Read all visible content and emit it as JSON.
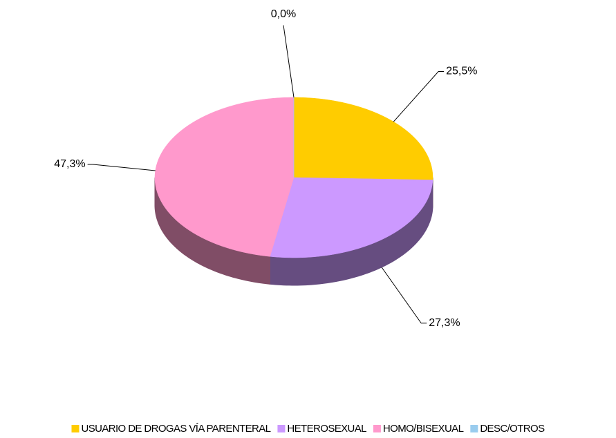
{
  "chart_data": {
    "type": "pie",
    "categories": [
      "USUARIO DE DROGAS VÍA PARENTERAL",
      "HETEROSEXUAL",
      "HOMO/BISEXUAL",
      "DESC/OTROS"
    ],
    "values": [
      25.5,
      27.3,
      47.3,
      0.0
    ],
    "value_labels": [
      "25,5%",
      "27,3%",
      "47,3%",
      "0,0%"
    ],
    "colors": [
      "#ffcc00",
      "#cc99ff",
      "#ff99cc",
      "#99ccee"
    ],
    "legend": "bottom"
  }
}
